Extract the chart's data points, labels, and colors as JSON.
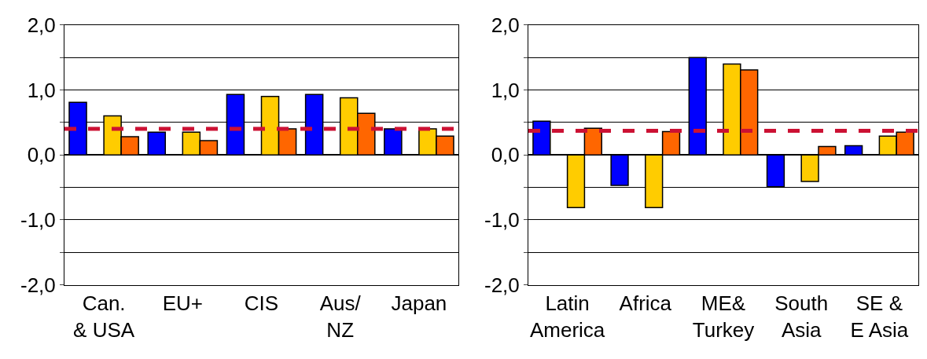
{
  "chart_data": [
    {
      "type": "bar",
      "categories": [
        "Can.\n& USA",
        "EU+",
        "CIS",
        "Aus/\nNZ",
        "Japan"
      ],
      "series": [
        {
          "color": "#0000ff",
          "values": [
            0.81,
            0.35,
            0.93,
            0.93,
            0.4
          ]
        },
        {
          "color": "#ffcc00",
          "values": [
            0.6,
            0.35,
            0.9,
            0.88,
            0.4
          ]
        },
        {
          "color": "#ff6600",
          "values": [
            0.28,
            0.22,
            0.4,
            0.64,
            0.29
          ]
        }
      ],
      "ylim": [
        -2,
        2
      ],
      "yticks": [
        {
          "value": -2,
          "label": "-2,0"
        },
        {
          "value": -1.5,
          "label": null
        },
        {
          "value": -1,
          "label": "-1,0"
        },
        {
          "value": -0.5,
          "label": null
        },
        {
          "value": 0,
          "label": "0,0"
        },
        {
          "value": 0.5,
          "label": null
        },
        {
          "value": 1,
          "label": "1,0"
        },
        {
          "value": 1.5,
          "label": null
        },
        {
          "value": 2,
          "label": "2,0"
        }
      ],
      "grid": "y",
      "ref_lines": [
        {
          "axis": "y",
          "value": 0.4,
          "color": "#cc1133",
          "line_style": "dashed"
        }
      ]
    },
    {
      "type": "bar",
      "categories": [
        "Latin\nAmerica",
        "Africa",
        "ME&\nTurkey",
        "South\nAsia",
        "SE &\nE Asia"
      ],
      "series": [
        {
          "color": "#0000ff",
          "values": [
            0.52,
            -0.47,
            1.5,
            -0.49,
            0.14
          ]
        },
        {
          "color": "#ffcc00",
          "values": [
            -0.81,
            -0.81,
            1.4,
            -0.41,
            0.29
          ]
        },
        {
          "color": "#ff6600",
          "values": [
            0.41,
            0.36,
            1.31,
            0.13,
            0.35
          ]
        }
      ],
      "ylim": [
        -2,
        2
      ],
      "yticks": [
        {
          "value": -2,
          "label": "-2,0"
        },
        {
          "value": -1.5,
          "label": null
        },
        {
          "value": -1,
          "label": "-1,0"
        },
        {
          "value": -0.5,
          "label": null
        },
        {
          "value": 0,
          "label": "0,0"
        },
        {
          "value": 0.5,
          "label": null
        },
        {
          "value": 1,
          "label": "1,0"
        },
        {
          "value": 1.5,
          "label": null
        },
        {
          "value": 2,
          "label": "2,0"
        }
      ],
      "grid": "y",
      "ref_lines": [
        {
          "axis": "y",
          "value": 0.37,
          "color": "#cc1133",
          "line_style": "dashed"
        }
      ]
    }
  ]
}
